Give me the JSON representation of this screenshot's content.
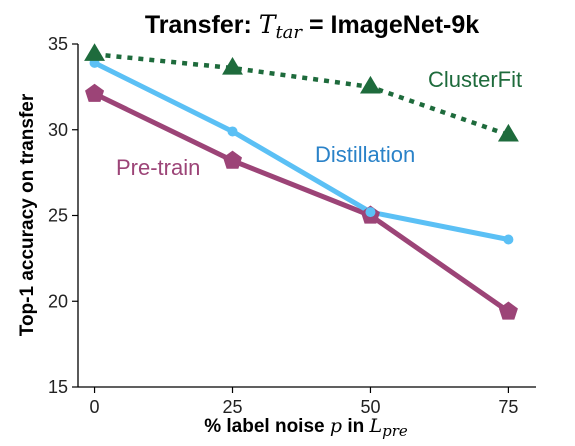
{
  "chart_data": {
    "type": "line",
    "title_prefix": "Transfer: ",
    "title_var_main": "T",
    "title_var_sub": "tar",
    "title_suffix": " = ImageNet-9k",
    "xlabel_prefix": "% label noise ",
    "xlabel_var": "p",
    "xlabel_mid": " in  ",
    "xlabel_var2_main": "L",
    "xlabel_var2_sub": "pre",
    "ylabel": "Top-1 accuracy on transfer",
    "x": [
      0,
      25,
      50,
      75
    ],
    "xticks": [
      "0",
      "25",
      "50",
      "75"
    ],
    "yticks": [
      "15",
      "20",
      "25",
      "30",
      "35"
    ],
    "xlim": [
      -3,
      80
    ],
    "ylim": [
      15,
      35
    ],
    "grid": false,
    "series": [
      {
        "name": "ClusterFit",
        "values": [
          34.4,
          33.6,
          32.5,
          29.7
        ],
        "color": "#1e6b3c",
        "line_style": "dotted",
        "marker": "triangle"
      },
      {
        "name": "Distillation",
        "values": [
          33.9,
          29.9,
          25.2,
          23.6
        ],
        "color": "#5bc0f5",
        "label_color": "#2a82c8",
        "line_style": "solid",
        "marker": "circle"
      },
      {
        "name": "Pre-train",
        "values": [
          32.1,
          28.2,
          25.0,
          19.4
        ],
        "color": "#9c4477",
        "line_style": "solid",
        "marker": "pentagon"
      }
    ]
  }
}
